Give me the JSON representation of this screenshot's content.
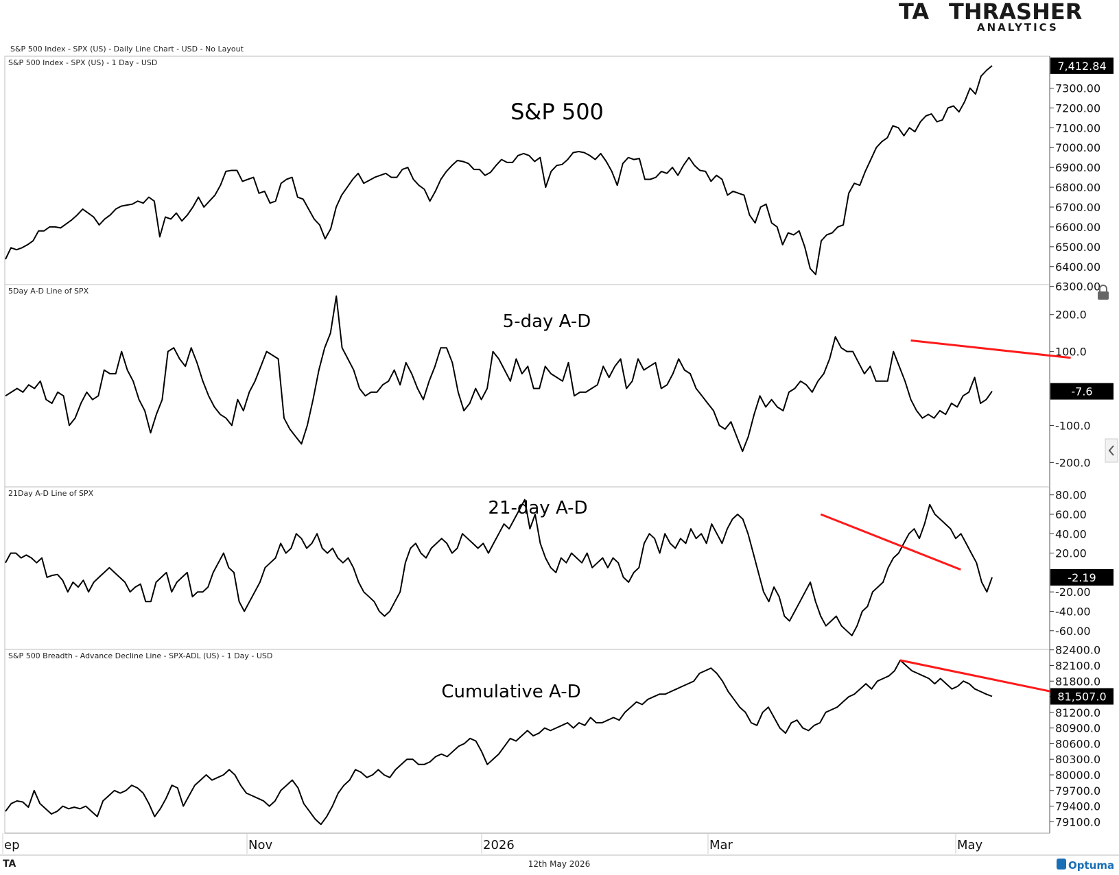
{
  "header": {
    "chart_title": "S&P 500 Index - SPX (US) - Daily Line Chart - USD - No Layout",
    "logo": {
      "big": "THRASHER",
      "small": "ANALYTICS",
      "mark": "TA"
    }
  },
  "footer": {
    "date": "12th May 2026",
    "brand": "Optuma",
    "mark": "TA"
  },
  "x_labels": [
    "ep",
    "Nov",
    "2026",
    "Mar",
    "May"
  ],
  "chart_data": [
    {
      "type": "line",
      "panel_label": "S&P 500 Index - SPX (US) - 1 Day - USD",
      "title": "S&P 500",
      "ylim": [
        6330,
        7440
      ],
      "yticks": [
        "7300.00",
        "7200.00",
        "7100.00",
        "7000.00",
        "6900.00",
        "6800.00",
        "6700.00",
        "6600.00",
        "6500.00",
        "6400.00",
        "6300.00"
      ],
      "last_value_label": "7,412.84",
      "values": [
        6437,
        6495,
        6485,
        6495,
        6510,
        6530,
        6580,
        6580,
        6600,
        6600,
        6595,
        6615,
        6635,
        6660,
        6690,
        6670,
        6650,
        6610,
        6640,
        6660,
        6690,
        6705,
        6710,
        6715,
        6730,
        6720,
        6750,
        6730,
        6550,
        6650,
        6640,
        6670,
        6630,
        6660,
        6700,
        6750,
        6700,
        6730,
        6760,
        6810,
        6880,
        6885,
        6885,
        6830,
        6840,
        6850,
        6770,
        6780,
        6720,
        6730,
        6820,
        6840,
        6850,
        6750,
        6740,
        6690,
        6640,
        6610,
        6540,
        6590,
        6700,
        6760,
        6800,
        6840,
        6870,
        6820,
        6835,
        6850,
        6860,
        6870,
        6850,
        6850,
        6890,
        6900,
        6840,
        6810,
        6790,
        6730,
        6780,
        6840,
        6880,
        6910,
        6935,
        6930,
        6920,
        6890,
        6890,
        6860,
        6875,
        6910,
        6940,
        6925,
        6925,
        6960,
        6970,
        6960,
        6930,
        6950,
        6800,
        6880,
        6910,
        6915,
        6940,
        6975,
        6980,
        6975,
        6960,
        6940,
        6970,
        6930,
        6880,
        6810,
        6920,
        6950,
        6940,
        6945,
        6840,
        6840,
        6850,
        6880,
        6870,
        6900,
        6860,
        6910,
        6950,
        6910,
        6885,
        6880,
        6830,
        6860,
        6840,
        6760,
        6780,
        6770,
        6760,
        6660,
        6620,
        6700,
        6715,
        6620,
        6600,
        6510,
        6570,
        6560,
        6580,
        6500,
        6390,
        6360,
        6530,
        6560,
        6570,
        6600,
        6610,
        6770,
        6820,
        6810,
        6880,
        6940,
        7000,
        7030,
        7050,
        7110,
        7100,
        7060,
        7100,
        7080,
        7130,
        7160,
        7170,
        7130,
        7140,
        7200,
        7210,
        7180,
        7230,
        7300,
        7270,
        7360,
        7390,
        7412.84
      ]
    },
    {
      "type": "line",
      "panel_label": "5Day A-D Line of SPX",
      "title": "5-day A-D",
      "ylim": [
        -255,
        270
      ],
      "yticks": [
        "200.0",
        "100.0",
        "-7.6",
        "-100.0",
        "-200.0"
      ],
      "last_value_label": "-7.6",
      "values": [
        -20,
        -10,
        0,
        -10,
        10,
        0,
        20,
        -30,
        -40,
        -10,
        -20,
        -100,
        -80,
        -40,
        -10,
        -30,
        -20,
        50,
        40,
        40,
        100,
        50,
        20,
        -30,
        -60,
        -120,
        -70,
        -30,
        100,
        110,
        80,
        60,
        110,
        70,
        20,
        -20,
        -50,
        -70,
        -80,
        -100,
        -30,
        -60,
        -10,
        20,
        60,
        100,
        90,
        80,
        -80,
        -110,
        -130,
        -150,
        -100,
        -30,
        50,
        110,
        150,
        250,
        110,
        80,
        50,
        0,
        -20,
        -10,
        -10,
        10,
        20,
        50,
        10,
        70,
        40,
        0,
        -30,
        20,
        60,
        110,
        110,
        70,
        -10,
        -60,
        -40,
        0,
        -30,
        0,
        100,
        80,
        50,
        20,
        80,
        40,
        60,
        0,
        0,
        60,
        40,
        30,
        20,
        70,
        -20,
        -10,
        -10,
        0,
        10,
        60,
        30,
        60,
        80,
        0,
        20,
        80,
        50,
        60,
        70,
        0,
        10,
        40,
        80,
        50,
        40,
        0,
        -20,
        -40,
        -60,
        -100,
        -110,
        -90,
        -130,
        -170,
        -130,
        -70,
        -20,
        -50,
        -30,
        -50,
        -60,
        -10,
        0,
        20,
        10,
        -10,
        20,
        40,
        80,
        140,
        110,
        100,
        100,
        70,
        40,
        60,
        20,
        20,
        20,
        100,
        60,
        20,
        -30,
        -60,
        -80,
        -70,
        -80,
        -60,
        -70,
        -40,
        -50,
        -20,
        -10,
        30,
        -40,
        -30,
        -7.6
      ],
      "trend_line": {
        "from": [
          156,
          130
        ],
        "to": [
          180,
          83
        ]
      }
    },
    {
      "type": "line",
      "panel_label": "21Day A-D Line of SPX",
      "title": "21-day A-D",
      "ylim": [
        -75,
        84
      ],
      "yticks": [
        "80.00",
        "60.00",
        "40.00",
        "20.00",
        "-2.19",
        "-20.00",
        "-40.00",
        "-60.00"
      ],
      "last_value_label": "-2.19",
      "values": [
        10,
        20,
        20,
        15,
        18,
        15,
        10,
        15,
        -5,
        -3,
        -2,
        -8,
        -20,
        -10,
        -15,
        -8,
        -20,
        -10,
        -5,
        0,
        5,
        0,
        -5,
        -10,
        -20,
        -15,
        -12,
        -30,
        -30,
        -10,
        -5,
        0,
        -20,
        -10,
        -5,
        0,
        -25,
        -20,
        -20,
        -15,
        0,
        10,
        20,
        5,
        0,
        -30,
        -40,
        -30,
        -20,
        -10,
        5,
        10,
        15,
        30,
        20,
        25,
        40,
        35,
        25,
        30,
        40,
        25,
        20,
        25,
        15,
        10,
        15,
        5,
        -10,
        -20,
        -25,
        -30,
        -40,
        -45,
        -40,
        -30,
        -20,
        10,
        25,
        30,
        20,
        15,
        25,
        30,
        35,
        30,
        20,
        25,
        40,
        35,
        30,
        25,
        30,
        20,
        30,
        40,
        50,
        45,
        55,
        65,
        75,
        45,
        60,
        30,
        15,
        5,
        0,
        15,
        10,
        20,
        15,
        10,
        20,
        5,
        10,
        15,
        5,
        15,
        10,
        -5,
        -10,
        0,
        5,
        30,
        40,
        35,
        20,
        40,
        30,
        25,
        35,
        30,
        45,
        35,
        40,
        30,
        50,
        40,
        30,
        45,
        55,
        60,
        55,
        40,
        20,
        0,
        -20,
        -30,
        -15,
        -25,
        -45,
        -50,
        -40,
        -30,
        -20,
        -10,
        -30,
        -45,
        -55,
        -50,
        -45,
        -55,
        -60,
        -65,
        -55,
        -40,
        -35,
        -20,
        -15,
        -10,
        5,
        15,
        20,
        30,
        40,
        45,
        35,
        50,
        70,
        60,
        55,
        50,
        45,
        35,
        40,
        30,
        20,
        10,
        -10,
        -20,
        -5
      ],
      "trend_line": {
        "from": [
          157,
          60
        ],
        "to": [
          180,
          3
        ]
      }
    },
    {
      "type": "line",
      "panel_label": "S&P 500 Breadth - Advance Decline Line - SPX-ADL (US) - 1 Day - USD",
      "title": "Cumulative A-D",
      "ylim": [
        78960,
        82330
      ],
      "yticks": [
        "82400.0",
        "82100.0",
        "81800.0",
        "81507.0",
        "81200.0",
        "80900.0",
        "80600.0",
        "80300.0",
        "80000.0",
        "79700.0",
        "79400.0",
        "79100.0"
      ],
      "last_value_label": "81,507.0",
      "values": [
        79300,
        79450,
        79500,
        79480,
        79380,
        79700,
        79450,
        79350,
        79250,
        79300,
        79400,
        79350,
        79380,
        79350,
        79400,
        79300,
        79200,
        79500,
        79600,
        79700,
        79650,
        79700,
        79800,
        79750,
        79650,
        79450,
        79200,
        79350,
        79550,
        79800,
        79750,
        79400,
        79600,
        79800,
        79900,
        80000,
        79900,
        79950,
        80000,
        80100,
        80000,
        79800,
        79650,
        79600,
        79550,
        79500,
        79400,
        79500,
        79700,
        79800,
        79900,
        79750,
        79450,
        79300,
        79150,
        79050,
        79200,
        79400,
        79650,
        79800,
        79900,
        80100,
        80050,
        79950,
        80000,
        80100,
        80000,
        79950,
        80100,
        80200,
        80300,
        80300,
        80200,
        80200,
        80250,
        80350,
        80400,
        80350,
        80450,
        80550,
        80600,
        80700,
        80650,
        80450,
        80200,
        80300,
        80400,
        80550,
        80700,
        80650,
        80750,
        80850,
        80750,
        80800,
        80900,
        80850,
        80900,
        80950,
        81000,
        80900,
        81000,
        80950,
        81100,
        81000,
        81000,
        81050,
        81100,
        81050,
        81200,
        81300,
        81400,
        81350,
        81450,
        81500,
        81550,
        81550,
        81600,
        81650,
        81700,
        81750,
        81800,
        81950,
        82000,
        82050,
        81950,
        81800,
        81600,
        81450,
        81300,
        81200,
        81000,
        80950,
        81200,
        81300,
        81100,
        80900,
        80800,
        81000,
        81050,
        80900,
        80850,
        80950,
        81000,
        81200,
        81250,
        81300,
        81400,
        81500,
        81550,
        81650,
        81750,
        81650,
        81800,
        81850,
        81900,
        82000,
        82200,
        82100,
        82000,
        81950,
        81900,
        81850,
        81750,
        81850,
        81750,
        81650,
        81700,
        81800,
        81750,
        81650,
        81600,
        81550,
        81507
      ],
      "trend_line": {
        "from": [
          156,
          82200
        ],
        "to": [
          180,
          81570
        ]
      }
    }
  ],
  "colors": {
    "line": "#000000",
    "trend": "#ff1a1a",
    "grid": "#c8c8c8",
    "badge": "#000000",
    "logo_green": "#3aa83a",
    "optuma_blue": "#1a6fb5"
  },
  "icons": {
    "lock": "lock-icon",
    "collapse": "chevron-left-icon"
  }
}
